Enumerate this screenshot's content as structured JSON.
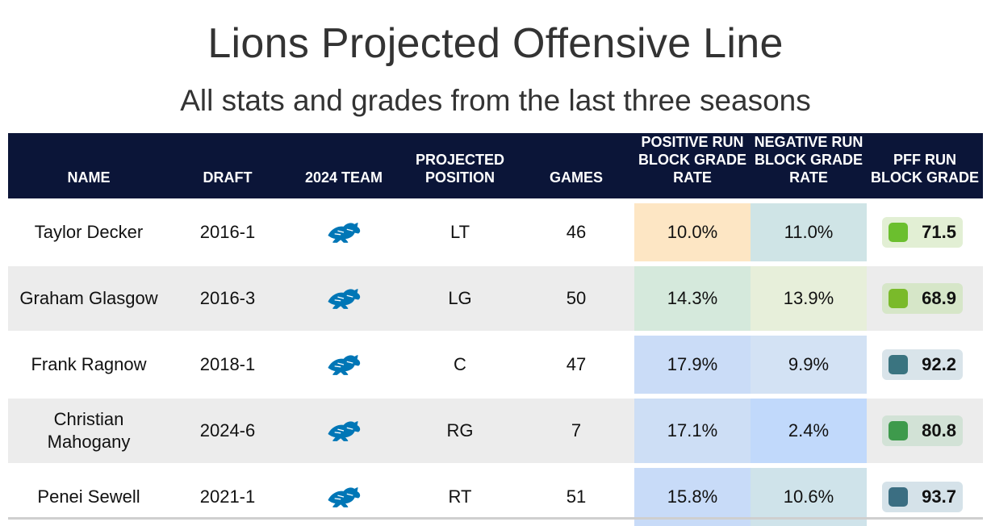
{
  "title": "Lions Projected Offensive Line",
  "subtitle": "All stats and grades from the last three seasons",
  "columns": {
    "name": "NAME",
    "draft": "DRAFT",
    "team": "2024 TEAM",
    "position": "PROJECTED POSITION",
    "games": "GAMES",
    "positive": "POSITIVE RUN BLOCK GRADE RATE",
    "negative": "NEGATIVE RUN BLOCK GRADE RATE",
    "pff": "PFF RUN BLOCK GRADE"
  },
  "team_logo_icon": "detroit-lions-logo-icon",
  "team_logo_color": "#0076b6",
  "rows": [
    {
      "name": "Taylor Decker",
      "draft": "2016-1",
      "position": "LT",
      "games": "46",
      "positive": "10.0%",
      "positive_bg": "#fde6c4",
      "negative": "11.0%",
      "negative_bg": "#cfe4e6",
      "grade": "71.5",
      "grade_dot": "#6bbf2e",
      "grade_bg": "#e2efd4"
    },
    {
      "name": "Graham Glasgow",
      "draft": "2016-3",
      "position": "LG",
      "games": "50",
      "positive": "14.3%",
      "positive_bg": "#d5e9dc",
      "negative": "13.9%",
      "negative_bg": "#e7efda",
      "grade": "68.9",
      "grade_dot": "#7aba2a",
      "grade_bg": "#d6e6c8"
    },
    {
      "name": "Frank Ragnow",
      "draft": "2018-1",
      "position": "C",
      "games": "47",
      "positive": "17.9%",
      "positive_bg": "#cadcf7",
      "negative": "9.9%",
      "negative_bg": "#d3e2f4",
      "grade": "92.2",
      "grade_dot": "#3a7480",
      "grade_bg": "#d9e4ea"
    },
    {
      "name": "Christian Mahogany",
      "draft": "2024-6",
      "position": "RG",
      "games": "7",
      "positive": "17.1%",
      "positive_bg": "#cddef5",
      "negative": "2.4%",
      "negative_bg": "#c1d9fb",
      "grade": "80.8",
      "grade_dot": "#3e9a4c",
      "grade_bg": "#d2e2d6"
    },
    {
      "name": "Penei Sewell",
      "draft": "2021-1",
      "position": "RT",
      "games": "51",
      "positive": "15.8%",
      "positive_bg": "#c8dbf8",
      "negative": "10.6%",
      "negative_bg": "#cfe3ea",
      "grade": "93.7",
      "grade_dot": "#3b6e82",
      "grade_bg": "#d5e2e9"
    }
  ]
}
